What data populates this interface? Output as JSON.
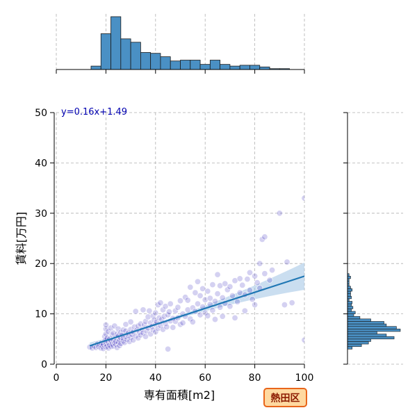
{
  "chart_data": {
    "type": "scatter",
    "title": "",
    "xlabel": "専有面積[m2]",
    "ylabel": "賃料[万円]",
    "xlim": [
      0,
      100
    ],
    "ylim": [
      0,
      50
    ],
    "x_ticks": [
      "0",
      "20",
      "40",
      "60",
      "80",
      "100"
    ],
    "y_ticks": [
      "0",
      "10",
      "20",
      "30",
      "40",
      "50"
    ],
    "grid": true,
    "regression": {
      "equation": "y=0.16x+1.49",
      "slope": 0.16,
      "intercept": 1.49,
      "x_range": [
        13.5,
        100
      ]
    },
    "badge": "熱田区",
    "colors": {
      "scatter": "#3a2fc0",
      "line": "#1f77b4",
      "ci_band": "#a6c8e6",
      "hist": "#4a90c4",
      "badge_bg": "#ffd9a0",
      "badge_border": "#e8651a"
    },
    "top_histogram": {
      "bin_edges": [
        14,
        18,
        22,
        26,
        30,
        34,
        38,
        42,
        46,
        50,
        54,
        58,
        62,
        66,
        70,
        74,
        78,
        82,
        86,
        90,
        94
      ],
      "counts": [
        4,
        42,
        62,
        36,
        32,
        20,
        19,
        15,
        10,
        11,
        11,
        6,
        11,
        6,
        4,
        5,
        5,
        3,
        1,
        1
      ]
    },
    "right_histogram": {
      "bin_edges": [
        3,
        3.5,
        4,
        4.5,
        5,
        5.5,
        6,
        6.5,
        7,
        7.5,
        8,
        8.5,
        9,
        9.5,
        10,
        10.5,
        11,
        11.5,
        12,
        12.5,
        13,
        13.5,
        14,
        14.5,
        15,
        15.5,
        16,
        16.5,
        17,
        17.5,
        18
      ],
      "counts": [
        6,
        18,
        27,
        30,
        60,
        50,
        38,
        68,
        63,
        50,
        47,
        30,
        16,
        8,
        10,
        5,
        7,
        5,
        6,
        2,
        5,
        4,
        4,
        6,
        4,
        2,
        2,
        2,
        4,
        2
      ]
    },
    "points": [
      [
        13.5,
        3.4
      ],
      [
        14.5,
        3.2
      ],
      [
        15.2,
        3.6
      ],
      [
        16,
        3.3
      ],
      [
        16.5,
        4.0
      ],
      [
        17,
        3.5
      ],
      [
        17.5,
        3.8
      ],
      [
        18,
        3.2
      ],
      [
        18,
        4.2
      ],
      [
        18.5,
        3.6
      ],
      [
        19,
        3.1
      ],
      [
        19,
        3.9
      ],
      [
        19.5,
        4.6
      ],
      [
        19.5,
        5.5
      ],
      [
        20,
        3.4
      ],
      [
        20,
        4.0
      ],
      [
        20,
        4.8
      ],
      [
        20,
        6.0
      ],
      [
        20,
        7.0
      ],
      [
        20,
        7.8
      ],
      [
        20.5,
        3.6
      ],
      [
        20.5,
        5.2
      ],
      [
        21,
        3.2
      ],
      [
        21,
        4.3
      ],
      [
        21,
        6.5
      ],
      [
        21.5,
        3.8
      ],
      [
        21.5,
        5.0
      ],
      [
        22,
        3.5
      ],
      [
        22,
        4.6
      ],
      [
        22,
        7.2
      ],
      [
        22.5,
        4.0
      ],
      [
        22.5,
        5.8
      ],
      [
        23,
        3.6
      ],
      [
        23,
        4.8
      ],
      [
        23,
        6.2
      ],
      [
        23.5,
        4.2
      ],
      [
        23.5,
        7.6
      ],
      [
        24,
        3.9
      ],
      [
        24,
        5.3
      ],
      [
        24,
        4.5
      ],
      [
        24.5,
        3.3
      ],
      [
        24.5,
        6.0
      ],
      [
        25,
        4.4
      ],
      [
        25,
        5.6
      ],
      [
        25,
        7.0
      ],
      [
        25.5,
        4.8
      ],
      [
        25.5,
        3.7
      ],
      [
        26,
        5.2
      ],
      [
        26,
        6.3
      ],
      [
        26,
        4.1
      ],
      [
        26.5,
        5.8
      ],
      [
        27,
        4.6
      ],
      [
        27,
        6.8
      ],
      [
        27,
        5.1
      ],
      [
        27.5,
        4.3
      ],
      [
        28,
        5.5
      ],
      [
        28,
        6.6
      ],
      [
        28,
        7.9
      ],
      [
        28.5,
        4.9
      ],
      [
        29,
        5.7
      ],
      [
        29,
        6.2
      ],
      [
        29.5,
        4.5
      ],
      [
        30,
        5.3
      ],
      [
        30,
        6.9
      ],
      [
        30,
        8.4
      ],
      [
        30.5,
        5.9
      ],
      [
        31,
        4.8
      ],
      [
        31,
        6.4
      ],
      [
        31.5,
        7.4
      ],
      [
        32,
        5.6
      ],
      [
        32,
        10.5
      ],
      [
        32.5,
        6.8
      ],
      [
        33,
        5.2
      ],
      [
        33,
        7.6
      ],
      [
        33.5,
        6.3
      ],
      [
        34,
        5.8
      ],
      [
        34,
        8.0
      ],
      [
        34.5,
        6.9
      ],
      [
        35,
        10.8
      ],
      [
        35,
        6.2
      ],
      [
        35.5,
        7.8
      ],
      [
        36,
        5.5
      ],
      [
        36,
        8.5
      ],
      [
        36.5,
        6.6
      ],
      [
        37,
        7.2
      ],
      [
        37,
        9.4
      ],
      [
        37.5,
        10.6
      ],
      [
        38,
        6.0
      ],
      [
        38,
        8.2
      ],
      [
        38.5,
        7.5
      ],
      [
        39,
        6.8
      ],
      [
        39,
        9.6
      ],
      [
        39.5,
        8.8
      ],
      [
        40,
        6.4
      ],
      [
        40,
        7.9
      ],
      [
        40,
        10.2
      ],
      [
        40.5,
        8.4
      ],
      [
        41,
        7.1
      ],
      [
        41,
        11.8
      ],
      [
        41.5,
        9.2
      ],
      [
        42,
        7.7
      ],
      [
        42,
        12.2
      ],
      [
        42.5,
        8.9
      ],
      [
        43,
        6.9
      ],
      [
        43,
        10.8
      ],
      [
        43.5,
        9.5
      ],
      [
        44,
        8.1
      ],
      [
        44,
        11.5
      ],
      [
        44.5,
        7.4
      ],
      [
        45,
        9.8
      ],
      [
        45,
        3.0
      ],
      [
        45.5,
        10.4
      ],
      [
        46,
        8.6
      ],
      [
        46,
        12.0
      ],
      [
        47,
        9.1
      ],
      [
        47,
        7.3
      ],
      [
        48,
        10.6
      ],
      [
        48,
        8.5
      ],
      [
        49,
        11.3
      ],
      [
        49,
        9.2
      ],
      [
        50,
        7.9
      ],
      [
        50,
        12.6
      ],
      [
        51,
        10.0
      ],
      [
        51,
        8.2
      ],
      [
        52,
        13.3
      ],
      [
        52,
        9.5
      ],
      [
        53,
        10.8
      ],
      [
        53,
        12.7
      ],
      [
        54,
        9.0
      ],
      [
        54,
        15.3
      ],
      [
        55,
        11.2
      ],
      [
        55,
        8.4
      ],
      [
        56,
        14.2
      ],
      [
        56,
        10.5
      ],
      [
        57,
        12.0
      ],
      [
        57,
        16.4
      ],
      [
        58,
        9.8
      ],
      [
        58,
        13.6
      ],
      [
        59,
        11.4
      ],
      [
        59,
        15.0
      ],
      [
        60,
        10.2
      ],
      [
        60,
        12.8
      ],
      [
        61,
        14.5
      ],
      [
        61,
        9.6
      ],
      [
        62,
        11.9
      ],
      [
        62,
        13.1
      ],
      [
        63,
        15.8
      ],
      [
        63,
        10.7
      ],
      [
        64,
        12.5
      ],
      [
        64,
        8.9
      ],
      [
        65,
        14.0
      ],
      [
        65,
        17.8
      ],
      [
        66,
        11.3
      ],
      [
        66,
        15.6
      ],
      [
        67,
        13.2
      ],
      [
        67,
        9.5
      ],
      [
        68,
        16.0
      ],
      [
        68,
        12.1
      ],
      [
        69,
        14.8
      ],
      [
        70,
        11.5
      ],
      [
        70,
        15.4
      ],
      [
        71,
        13.6
      ],
      [
        72,
        9.2
      ],
      [
        72,
        16.6
      ],
      [
        73,
        12.4
      ],
      [
        74,
        14.2
      ],
      [
        74,
        17.0
      ],
      [
        75,
        15.7
      ],
      [
        76,
        10.6
      ],
      [
        76,
        13.8
      ],
      [
        77,
        16.9
      ],
      [
        78,
        18.2
      ],
      [
        78,
        14.7
      ],
      [
        79,
        12.9
      ],
      [
        80,
        17.5
      ],
      [
        80,
        11.8
      ],
      [
        81,
        16.2
      ],
      [
        82,
        20.0
      ],
      [
        82,
        15.1
      ],
      [
        83,
        24.8
      ],
      [
        84,
        25.3
      ],
      [
        84,
        18.0
      ],
      [
        86,
        16.7
      ],
      [
        87,
        18.7
      ],
      [
        90,
        30.0
      ],
      [
        92,
        11.8
      ],
      [
        93,
        20.3
      ],
      [
        95,
        12.2
      ],
      [
        100,
        33.0
      ],
      [
        100,
        4.8
      ]
    ]
  }
}
